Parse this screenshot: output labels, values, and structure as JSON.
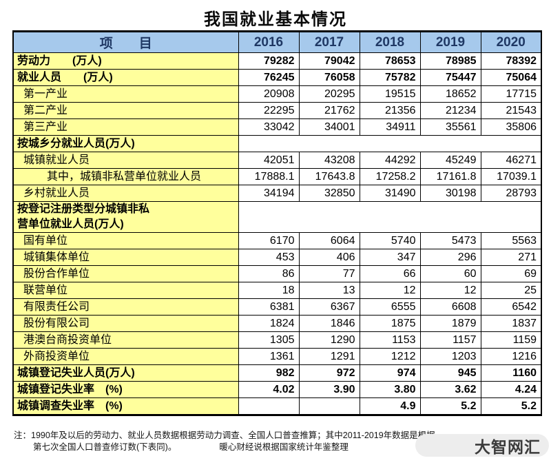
{
  "page_title": "我国就业基本情况",
  "colors": {
    "header_blue": "#a6c9ec",
    "label_yellow": "#ffff9c",
    "header_text_navy": "#1f3864",
    "border": "#000000",
    "watermark_bg": "#ededed",
    "watermark_text": "#3b3b3b"
  },
  "chart_data": {
    "type": "table",
    "title": "我国就业基本情况",
    "columns": [
      "项　　目",
      "2016",
      "2017",
      "2018",
      "2019",
      "2020"
    ],
    "rows": [
      {
        "label": "劳动力　　(万人)",
        "bold": true,
        "indent": 0,
        "values": [
          "79282",
          "79042",
          "78653",
          "78985",
          "78392"
        ]
      },
      {
        "label": "就业人员　　(万人)",
        "bold": true,
        "indent": 0,
        "values": [
          "76245",
          "76058",
          "75782",
          "75447",
          "75064"
        ]
      },
      {
        "label": "第一产业",
        "bold": false,
        "indent": 1,
        "values": [
          "20908",
          "20295",
          "19515",
          "18652",
          "17715"
        ]
      },
      {
        "label": "第二产业",
        "bold": false,
        "indent": 1,
        "values": [
          "22295",
          "21762",
          "21356",
          "21234",
          "21543"
        ]
      },
      {
        "label": "第三产业",
        "bold": false,
        "indent": 1,
        "values": [
          "33042",
          "34001",
          "34911",
          "35561",
          "35806"
        ]
      },
      {
        "label": "按城乡分就业人员(万人)",
        "bold": true,
        "indent": 0,
        "section": true,
        "values": []
      },
      {
        "label": "城镇就业人员",
        "bold": false,
        "indent": 1,
        "values": [
          "42051",
          "43208",
          "44292",
          "45249",
          "46271"
        ]
      },
      {
        "label": "其中，城镇非私营单位就业人员",
        "bold": false,
        "indent": 2,
        "values": [
          "17888.1",
          "17643.8",
          "17258.2",
          "17161.8",
          "17039.1"
        ]
      },
      {
        "label": "乡村就业人员",
        "bold": false,
        "indent": 1,
        "values": [
          "34194",
          "32850",
          "31490",
          "30198",
          "28793"
        ]
      },
      {
        "label_lines": [
          "按登记注册类型分城镇非私",
          "营单位就业人员(万人)"
        ],
        "bold": true,
        "indent": 0,
        "section": true,
        "values": []
      },
      {
        "label": "国有单位",
        "bold": false,
        "indent": 1,
        "values": [
          "6170",
          "6064",
          "5740",
          "5473",
          "5563"
        ]
      },
      {
        "label": "城镇集体单位",
        "bold": false,
        "indent": 1,
        "values": [
          "453",
          "406",
          "347",
          "296",
          "271"
        ]
      },
      {
        "label": "股份合作单位",
        "bold": false,
        "indent": 1,
        "values": [
          "86",
          "77",
          "66",
          "60",
          "69"
        ]
      },
      {
        "label": "联营单位",
        "bold": false,
        "indent": 1,
        "values": [
          "18",
          "13",
          "12",
          "12",
          "25"
        ]
      },
      {
        "label": "有限责任公司",
        "bold": false,
        "indent": 1,
        "values": [
          "6381",
          "6367",
          "6555",
          "6608",
          "6542"
        ]
      },
      {
        "label": "股份有限公司",
        "bold": false,
        "indent": 1,
        "values": [
          "1824",
          "1846",
          "1875",
          "1879",
          "1837"
        ]
      },
      {
        "label": "港澳台商投资单位",
        "bold": false,
        "indent": 1,
        "values": [
          "1305",
          "1290",
          "1153",
          "1157",
          "1159"
        ]
      },
      {
        "label": "外商投资单位",
        "bold": false,
        "indent": 1,
        "values": [
          "1361",
          "1291",
          "1212",
          "1203",
          "1216"
        ]
      },
      {
        "label": "城镇登记失业人员(万人)",
        "bold": true,
        "indent": 0,
        "values": [
          "982",
          "972",
          "974",
          "945",
          "1160"
        ]
      },
      {
        "label": "城镇登记失业率　(%)",
        "bold": true,
        "indent": 0,
        "values": [
          "4.02",
          "3.90",
          "3.80",
          "3.62",
          "4.24"
        ]
      },
      {
        "label": "城镇调查失业率　(%)",
        "bold": true,
        "indent": 0,
        "values": [
          "",
          "",
          "4.9",
          "5.2",
          "5.2"
        ]
      }
    ]
  },
  "footnote": {
    "line1": "注：1990年及以后的劳动力、就业人员数据根据劳动力调查、全国人口普查推算；其中2011-2019年数据是根据",
    "line2_left": "第七次全国人口普查修订数(下表同)。",
    "line2_right": "暖心财经说根据国家统计年鉴整理"
  },
  "watermark": "大智网汇"
}
